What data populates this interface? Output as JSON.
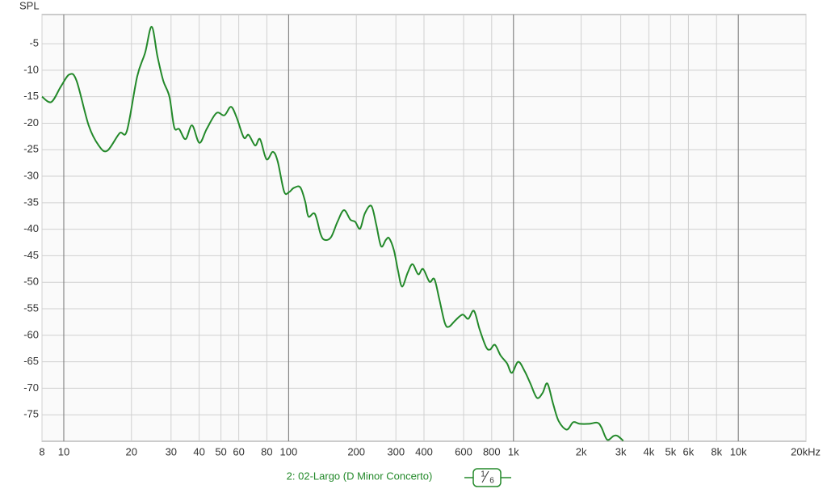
{
  "chart_data": {
    "type": "line",
    "y_label": "SPL",
    "log_x": true,
    "grid": true,
    "xlim": [
      8,
      20000
    ],
    "ylim": [
      -80,
      0.5
    ],
    "xticks": [
      8,
      10,
      20,
      30,
      40,
      50,
      60,
      80,
      100,
      200,
      300,
      400,
      600,
      800,
      {
        "value": 1000,
        "label": "1k"
      },
      {
        "value": 2000,
        "label": "2k"
      },
      {
        "value": 3000,
        "label": "3k"
      },
      {
        "value": 4000,
        "label": "4k"
      },
      {
        "value": 5000,
        "label": "5k"
      },
      {
        "value": 6000,
        "label": "6k"
      },
      {
        "value": 8000,
        "label": "8k"
      },
      {
        "value": 10000,
        "label": "10k"
      },
      {
        "value": 20000,
        "label": "20kHz"
      }
    ],
    "major_xticks": [
      10,
      100,
      1000,
      10000
    ],
    "yticks": [
      -5,
      -10,
      -15,
      -20,
      -25,
      -30,
      -35,
      -40,
      -45,
      -50,
      -55,
      -60,
      -65,
      -70,
      -75
    ],
    "smoothing": {
      "numerator": 1,
      "denominator": 6
    },
    "x": [
      8.0,
      8.8,
      9.7,
      10.6,
      11.4,
      12.9,
      14.3,
      15.6,
      17.7,
      19.1,
      21.2,
      23.0,
      24.6,
      26.1,
      27.7,
      29.5,
      31.0,
      32.6,
      34.8,
      37.2,
      40.1,
      43.2,
      47.7,
      51.8,
      55.4,
      58.7,
      63.2,
      66.4,
      71.0,
      74.6,
      79.7,
      85.1,
      89.4,
      95.5,
      100.4,
      105.5,
      112.7,
      118.5,
      122.5,
      130.8,
      138.7,
      144.5,
      154.4,
      164.9,
      176.2,
      188.2,
      197.8,
      207.9,
      218.4,
      233.3,
      245.2,
      257.7,
      270.8,
      279.9,
      294.1,
      306.5,
      319.5,
      338.5,
      355.7,
      377.1,
      396.2,
      423.2,
      444.7,
      467.4,
      495.2,
      516.1,
      551.3,
      593.9,
      629.3,
      667.1,
      707.0,
      755.1,
      786.9,
      826.9,
      876.1,
      935.9,
      983.5,
      1050,
      1122,
      1189,
      1271,
      1347,
      1415,
      1500,
      1589,
      1726,
      1844,
      1970,
      2175,
      2362,
      2463,
      2609,
      2788,
      2905,
      3078
    ],
    "series": [
      {
        "name": "2: 02-Largo (D Minor Concerto)",
        "color": "#23892a",
        "values": [
          -15.0,
          -16.0,
          -13.1,
          -10.8,
          -12.0,
          -20.4,
          -24.2,
          -25.2,
          -21.9,
          -21.4,
          -11.2,
          -6.7,
          -1.8,
          -7.4,
          -12.0,
          -15.0,
          -20.8,
          -21.1,
          -23.0,
          -20.4,
          -23.7,
          -21.1,
          -18.1,
          -18.5,
          -16.9,
          -18.9,
          -22.7,
          -22.2,
          -24.2,
          -23.0,
          -26.8,
          -25.4,
          -27.2,
          -32.9,
          -33.0,
          -32.2,
          -32.1,
          -34.8,
          -37.6,
          -37.1,
          -40.9,
          -42.0,
          -41.5,
          -38.6,
          -36.4,
          -38.2,
          -38.6,
          -39.9,
          -37.0,
          -35.6,
          -39.1,
          -43.2,
          -42.0,
          -41.7,
          -44.0,
          -47.8,
          -50.8,
          -48.2,
          -46.6,
          -48.5,
          -47.5,
          -49.9,
          -49.4,
          -53.1,
          -57.7,
          -58.4,
          -57.2,
          -56.1,
          -56.9,
          -55.4,
          -58.9,
          -62.2,
          -62.7,
          -61.8,
          -63.8,
          -65.3,
          -67.1,
          -65.0,
          -66.8,
          -69.1,
          -71.8,
          -70.9,
          -69.1,
          -72.9,
          -76.2,
          -77.8,
          -76.4,
          -76.7,
          -76.7,
          -76.5,
          -77.4,
          -79.7,
          -79.0,
          -79.0,
          -79.9
        ]
      }
    ]
  }
}
